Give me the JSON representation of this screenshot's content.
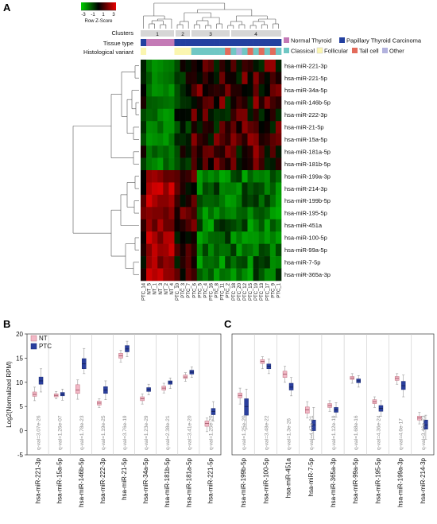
{
  "panels": {
    "a": "A",
    "b": "B",
    "c": "C"
  },
  "colorkey": {
    "title": "Row Z-Score",
    "ticks": [
      "-3",
      "-1",
      "1",
      "3"
    ]
  },
  "heatmap": {
    "annotation_labels": {
      "clusters": "Clusters",
      "tissue": "Tissue type",
      "histology": "Histological variant"
    },
    "cluster_numbers": [
      "1",
      "2",
      "3",
      "4"
    ],
    "legend": {
      "row1": [
        {
          "label": "Normal Thyroid",
          "color": "#c47ab6"
        },
        {
          "label": "Papillary Thyroid Carcinoma",
          "color": "#2340a0"
        }
      ],
      "row2": [
        {
          "label": "Classical",
          "color": "#6fc7c4"
        },
        {
          "label": "Follicular",
          "color": "#fbf6b0"
        },
        {
          "label": "Tall cell",
          "color": "#e36b5b"
        },
        {
          "label": "Other",
          "color": "#b2b2de"
        }
      ]
    },
    "rows": [
      "hsa-miR-221-3p",
      "hsa-miR-221-5p",
      "hsa-miR-34a-5p",
      "hsa-miR-146b-5p",
      "hsa-miR-222-3p",
      "hsa-miR-21-5p",
      "hsa-miR-15a-5p",
      "hsa-miR-181a-5p",
      "hsa-miR-181b-5p",
      "hsa-miR-199a-3p",
      "hsa-miR-214-3p",
      "hsa-miR-199b-5p",
      "hsa-miR-195-5p",
      "hsa-miR-451a",
      "hsa-miR-100-5p",
      "hsa-miR-99a-5p",
      "hsa-miR-7-5p",
      "hsa-miR-365a-3p"
    ],
    "columns": [
      "PTC_14",
      "NT_5",
      "NT_1",
      "NT_3",
      "NT_2",
      "NT_4",
      "PTC_10",
      "PTC_3",
      "PTC_7",
      "PTC_6",
      "PTC_5",
      "PTC_4",
      "PTC_16",
      "PTC_8",
      "PTC_11",
      "PTC_2",
      "PTC_18",
      "PTC_20",
      "PTC_12",
      "PTC_15",
      "PTC_19",
      "PTC_13",
      "PTC_17",
      "PTC_9",
      "PTC_1"
    ]
  },
  "chart_data": [
    {
      "type": "boxplot",
      "panel": "B",
      "ylabel": "Log2(Normalized RPM)",
      "ylim": [
        -5,
        20
      ],
      "yticks": [
        -5,
        0,
        5,
        10,
        15,
        20
      ],
      "legend": [
        {
          "name": "NT",
          "color": "#f2b8c6"
        },
        {
          "name": "PTC",
          "color": "#2a3f9e"
        }
      ],
      "categories": [
        "hsa-miR-221-3p",
        "hsa-miR-15a-5p",
        "hsa-miR-146b-5p",
        "hsa-miR-222-3p",
        "hsa-miR-21-5p",
        "hsa-miR-34a-5p",
        "hsa-miR-181b-5p",
        "hsa-miR-181a-5p",
        "hsa-miR-221-5p"
      ],
      "qvalues": [
        "q-val=3.07e-26",
        "q-val=1.26e-07",
        "q-val=1.78e-23",
        "q-val=1.19e-25",
        "q-val=3.76e-19",
        "q-val=1.23e-29",
        "q-val=2.38e-21",
        "q-val=3.41e-20",
        "q-val=1.25e-20"
      ],
      "series": [
        {
          "name": "NT",
          "boxes": [
            [
              6.2,
              7.1,
              7.5,
              8.0,
              9.0
            ],
            [
              6.6,
              7.0,
              7.3,
              7.6,
              8.1
            ],
            [
              6.5,
              7.7,
              8.4,
              9.5,
              10.5
            ],
            [
              4.8,
              5.3,
              5.7,
              6.1,
              6.6
            ],
            [
              14.2,
              15.0,
              15.5,
              16.0,
              16.6
            ],
            [
              5.5,
              6.2,
              6.6,
              7.0,
              7.6
            ],
            [
              7.8,
              8.4,
              8.8,
              9.2,
              9.8
            ],
            [
              10.2,
              10.8,
              11.1,
              11.5,
              12.0
            ],
            [
              -0.2,
              0.9,
              1.5,
              2.0,
              2.6
            ]
          ]
        },
        {
          "name": "PTC",
          "boxes": [
            [
              8.0,
              9.6,
              10.3,
              11.1,
              12.8
            ],
            [
              6.3,
              7.2,
              7.5,
              7.9,
              8.6
            ],
            [
              11.8,
              12.8,
              13.8,
              14.9,
              17.0
            ],
            [
              6.4,
              7.7,
              8.4,
              9.1,
              10.3
            ],
            [
              15.3,
              16.3,
              16.9,
              17.6,
              18.5
            ],
            [
              7.4,
              8.1,
              8.5,
              8.9,
              9.6
            ],
            [
              8.7,
              9.6,
              10.0,
              10.3,
              10.9
            ],
            [
              11.0,
              11.7,
              12.1,
              12.5,
              13.2
            ],
            [
              2.0,
              3.3,
              4.0,
              4.6,
              6.0
            ]
          ]
        }
      ]
    },
    {
      "type": "boxplot",
      "panel": "C",
      "ylim": [
        -5,
        20
      ],
      "categories": [
        "hsa-miR-199b-5p",
        "hsa-miR-100-5p",
        "hsa-miR-451a",
        "hsa-miR-7-5p",
        "hsa-miR-365a-3p",
        "hsa-miR-99a-5p",
        "hsa-miR-195-5p",
        "hsa-miR-199a-3p",
        "hsa-miR-214-3p"
      ],
      "qvalues": [
        "q-val=1.25e-20",
        "q-val=3.48e-22",
        "q-val=1.3e-26",
        "q-val=4.47e-21",
        "q-val=1.12e-19",
        "q-val=1.68e-16",
        "q-val=4.36e-24",
        "q-val=4.6e-17",
        "q-val=3.46e-23"
      ],
      "series": [
        {
          "name": "NT",
          "boxes": [
            [
              5.5,
              6.8,
              7.3,
              7.8,
              8.8
            ],
            [
              12.8,
              13.9,
              14.3,
              14.7,
              15.3
            ],
            [
              10.0,
              11.0,
              11.7,
              12.3,
              13.3
            ],
            [
              2.6,
              3.6,
              4.3,
              4.9,
              6.0
            ],
            [
              4.0,
              4.8,
              5.2,
              5.6,
              6.2
            ],
            [
              9.8,
              10.6,
              10.9,
              11.2,
              11.8
            ],
            [
              4.8,
              5.6,
              6.0,
              6.4,
              7.0
            ],
            [
              9.6,
              10.4,
              10.8,
              11.2,
              11.8
            ],
            [
              1.4,
              2.2,
              2.6,
              3.0,
              3.8
            ]
          ]
        },
        {
          "name": "PTC",
          "boxes": [
            [
              0.3,
              3.2,
              5.0,
              6.6,
              8.6
            ],
            [
              11.8,
              12.8,
              13.3,
              13.8,
              14.8
            ],
            [
              7.2,
              8.4,
              9.0,
              9.8,
              11.0
            ],
            [
              -1.8,
              0.0,
              1.2,
              2.2,
              4.8
            ],
            [
              2.8,
              3.8,
              4.3,
              4.8,
              5.8
            ],
            [
              9.0,
              9.9,
              10.3,
              10.7,
              11.4
            ],
            [
              3.0,
              4.0,
              4.6,
              5.2,
              6.2
            ],
            [
              7.0,
              8.5,
              9.3,
              10.2,
              11.5
            ],
            [
              -1.8,
              0.3,
              1.2,
              2.2,
              3.2
            ]
          ]
        }
      ]
    }
  ]
}
